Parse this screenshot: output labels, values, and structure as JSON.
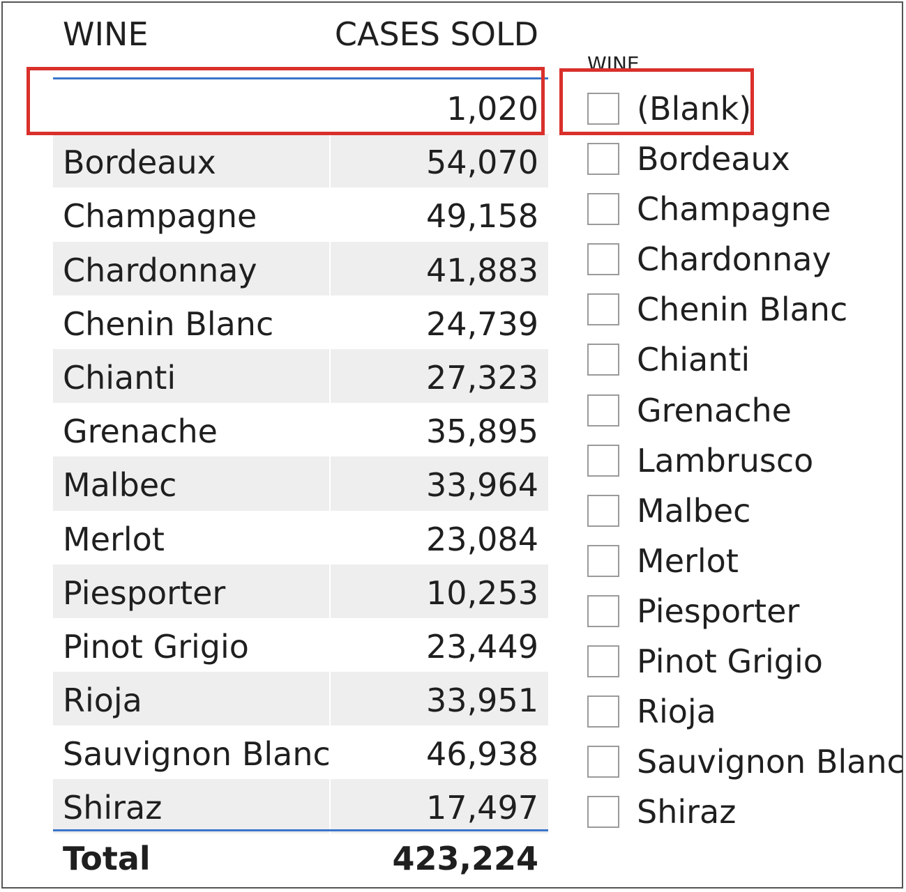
{
  "table": {
    "headers": {
      "wine": "WINE",
      "cases": "CASES SOLD"
    },
    "rows": [
      {
        "wine": "",
        "cases": "1,020"
      },
      {
        "wine": "Bordeaux",
        "cases": "54,070"
      },
      {
        "wine": "Champagne",
        "cases": "49,158"
      },
      {
        "wine": "Chardonnay",
        "cases": "41,883"
      },
      {
        "wine": "Chenin Blanc",
        "cases": "24,739"
      },
      {
        "wine": "Chianti",
        "cases": "27,323"
      },
      {
        "wine": "Grenache",
        "cases": "35,895"
      },
      {
        "wine": "Malbec",
        "cases": "33,964"
      },
      {
        "wine": "Merlot",
        "cases": "23,084"
      },
      {
        "wine": "Piesporter",
        "cases": "10,253"
      },
      {
        "wine": "Pinot Grigio",
        "cases": "23,449"
      },
      {
        "wine": "Rioja",
        "cases": "33,951"
      },
      {
        "wine": "Sauvignon Blanc",
        "cases": "46,938"
      },
      {
        "wine": "Shiraz",
        "cases": "17,497"
      }
    ],
    "total": {
      "label": "Total",
      "value": "423,224"
    }
  },
  "slicer": {
    "title": "WINE",
    "items": [
      {
        "label": "(Blank)",
        "checked": false
      },
      {
        "label": "Bordeaux",
        "checked": false
      },
      {
        "label": "Champagne",
        "checked": false
      },
      {
        "label": "Chardonnay",
        "checked": false
      },
      {
        "label": "Chenin Blanc",
        "checked": false
      },
      {
        "label": "Chianti",
        "checked": false
      },
      {
        "label": "Grenache",
        "checked": false
      },
      {
        "label": "Lambrusco",
        "checked": false
      },
      {
        "label": "Malbec",
        "checked": false
      },
      {
        "label": "Merlot",
        "checked": false
      },
      {
        "label": "Piesporter",
        "checked": false
      },
      {
        "label": "Pinot Grigio",
        "checked": false
      },
      {
        "label": "Rioja",
        "checked": false
      },
      {
        "label": "Sauvignon Blanc",
        "checked": false
      },
      {
        "label": "Shiraz",
        "checked": false
      }
    ]
  },
  "colors": {
    "highlight": "#d9302b",
    "accent_line": "#3a74c9",
    "alt_row": "#eeeeee"
  }
}
